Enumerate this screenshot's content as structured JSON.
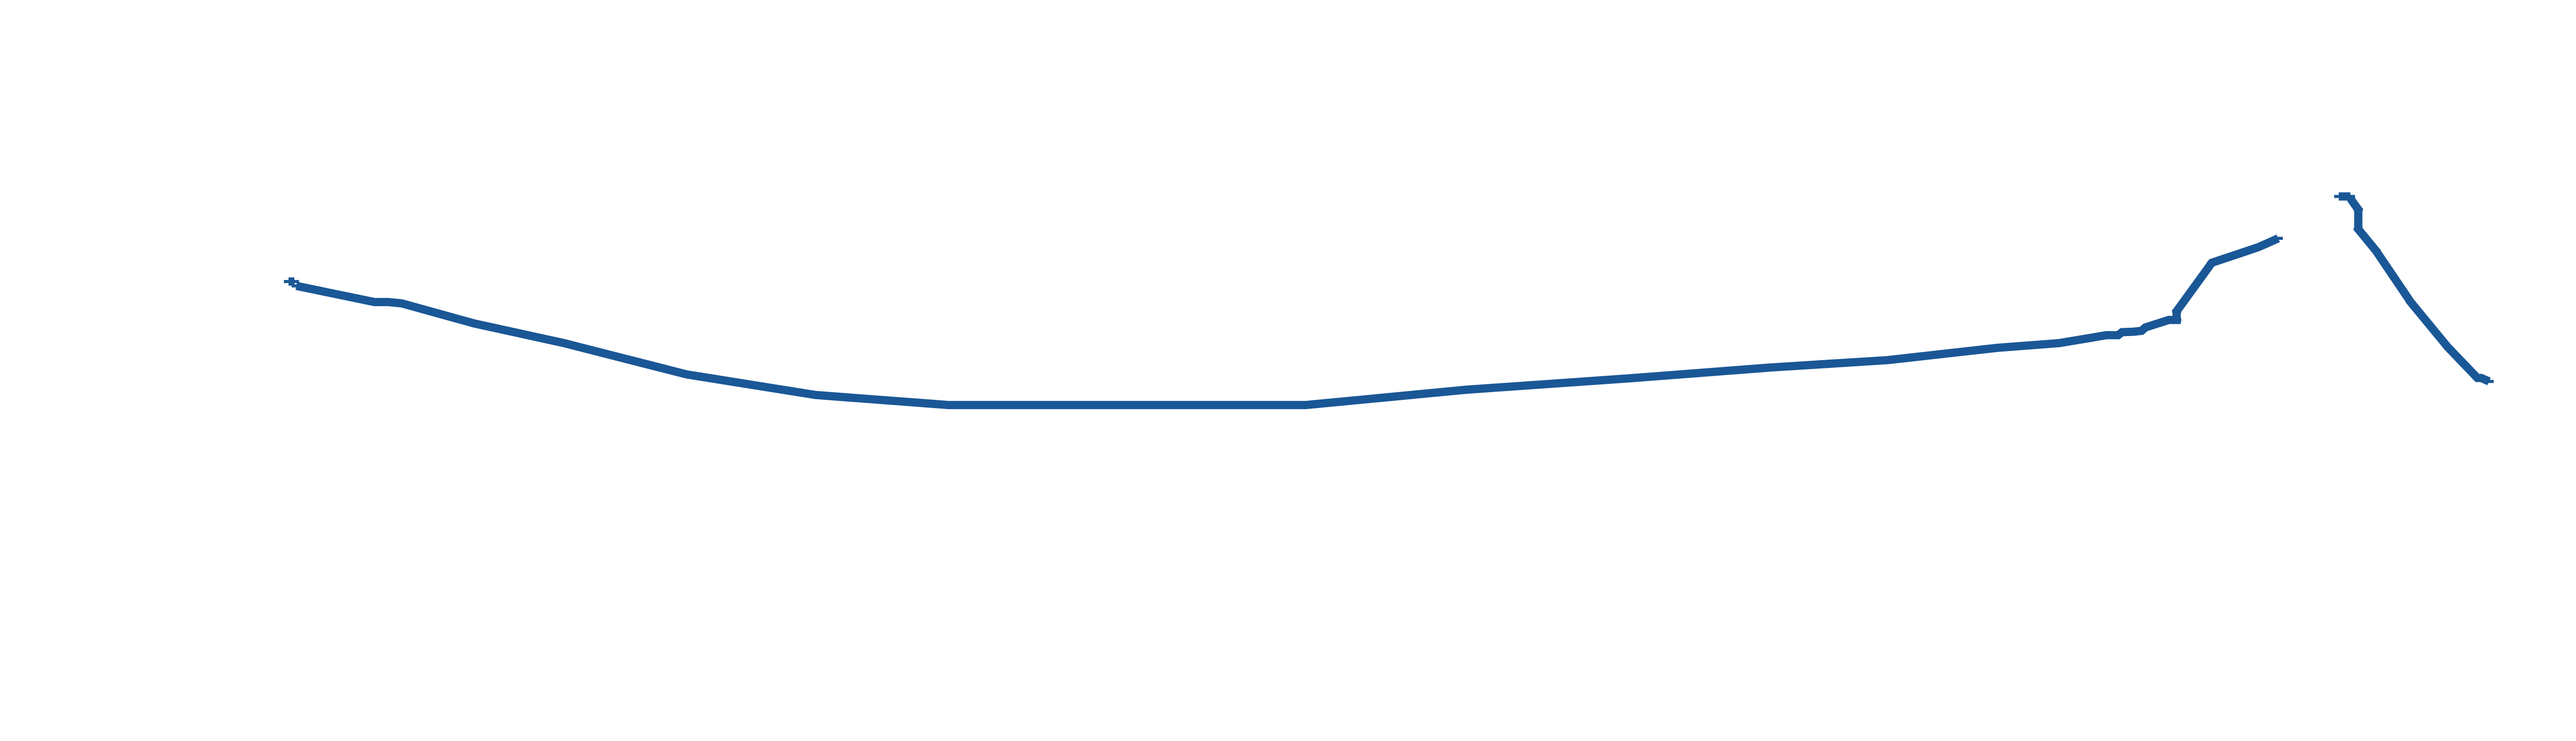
{
  "chart_data": {
    "type": "line",
    "title": "",
    "xlabel": "",
    "ylabel": "",
    "grid": false,
    "legend": "none",
    "axes_visible": false,
    "xlim": [
      0,
      100
    ],
    "ylim": [
      0,
      100
    ],
    "series_color": "#1a5796",
    "segments": [
      {
        "points": [
          [
            0.0,
            68.5
          ],
          [
            0.3,
            68.5
          ]
        ]
      },
      {
        "points": [
          [
            0.4,
            67.5
          ],
          [
            4.4,
            63.8
          ],
          [
            5.1,
            63.8
          ],
          [
            5.8,
            63.5
          ],
          [
            9.5,
            58.9
          ],
          [
            14.1,
            54.4
          ],
          [
            20.4,
            47.2
          ],
          [
            27.0,
            42.5
          ],
          [
            33.8,
            40.2
          ],
          [
            40.0,
            40.2
          ],
          [
            51.4,
            40.2
          ],
          [
            52.1,
            40.2
          ],
          [
            60.3,
            43.7
          ],
          [
            68.6,
            46.3
          ],
          [
            75.9,
            48.8
          ],
          [
            81.9,
            50.5
          ],
          [
            87.5,
            53.3
          ],
          [
            90.7,
            54.4
          ],
          [
            93.1,
            56.2
          ],
          [
            93.7,
            56.2
          ],
          [
            93.9,
            56.9
          ],
          [
            94.5,
            57.0
          ],
          [
            94.9,
            57.2
          ],
          [
            95.1,
            58.0
          ],
          [
            96.3,
            59.7
          ],
          [
            96.7,
            59.7
          ],
          [
            96.7,
            61.7
          ],
          [
            98.5,
            72.8
          ],
          [
            100.9,
            76.4
          ],
          [
            101.9,
            78.4
          ]
        ]
      },
      {
        "points": [
          [
            105.0,
            88.0
          ],
          [
            105.6,
            88.0
          ]
        ]
      },
      {
        "points": [
          [
            105.6,
            87.5
          ],
          [
            106.0,
            85.0
          ],
          [
            106.0,
            80.5
          ],
          [
            106.9,
            75.6
          ],
          [
            108.7,
            63.7
          ],
          [
            110.6,
            53.4
          ],
          [
            112.1,
            46.4
          ],
          [
            112.3,
            46.4
          ],
          [
            112.7,
            45.6
          ]
        ]
      }
    ]
  }
}
